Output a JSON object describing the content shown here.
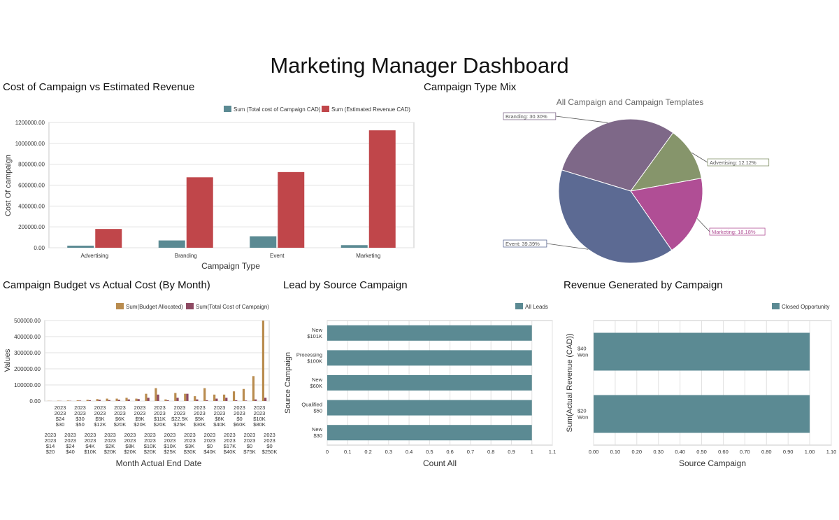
{
  "page_title": "Marketing Manager Dashboard",
  "colors": {
    "teal": "#5b8a93",
    "red": "#c0464a",
    "tan": "#b98c4f",
    "plum": "#8e4a63",
    "pie_branding": "#7e6888",
    "pie_advertising": "#86956b",
    "pie_marketing": "#b04e95",
    "pie_event": "#5c6a93"
  },
  "chart_data": [
    {
      "id": "cost_vs_revenue",
      "type": "bar",
      "title": "Cost of Campaign vs Estimated Revenue",
      "xlabel": "Campaign Type",
      "ylabel": "Cost Of campaign",
      "categories": [
        "Advertising",
        "Branding",
        "Event",
        "Marketing"
      ],
      "series": [
        {
          "name": "Sum (Total cost of Campaign CAD)",
          "values": [
            20000,
            70000,
            110000,
            25000
          ]
        },
        {
          "name": "Sum (Estimated Revenue CAD)",
          "values": [
            180000,
            675000,
            725000,
            1125000
          ]
        }
      ],
      "yticks": [
        "0.00",
        "200000.00",
        "400000.00",
        "600000.00",
        "800000.00",
        "1000000.00",
        "1200000.00"
      ],
      "ylim": [
        0,
        1200000
      ],
      "grid": true,
      "legend": "top"
    },
    {
      "id": "type_mix",
      "type": "pie",
      "title": "Campaign Type Mix",
      "subtitle": "All Campaign and Campaign Templates",
      "slices": [
        {
          "label": "Branding: 30.30%",
          "value": 30.3
        },
        {
          "label": "Advertising: 12.12%",
          "value": 12.12
        },
        {
          "label": "Marketing: 18.18%",
          "value": 18.18
        },
        {
          "label": "Event: 39.39%",
          "value": 39.39
        }
      ]
    },
    {
      "id": "budget_vs_actual",
      "type": "bar",
      "title": "Campaign Budget vs Actual Cost (By Month)",
      "xlabel": "Month Actual End Date",
      "ylabel": "Values",
      "series": [
        {
          "name": "Sum(Budget Allocated)",
          "values": [
            1000,
            2000,
            3000,
            5000,
            8000,
            12000,
            15000,
            15000,
            20000,
            15000,
            45000,
            80000,
            10000,
            50000,
            45000,
            30000,
            80000,
            40000,
            40000,
            60000,
            75000,
            155000,
            500000
          ]
        },
        {
          "name": "Sum(Total Cost of Campaign)",
          "values": [
            500,
            1000,
            1500,
            3000,
            5000,
            8000,
            6000,
            8000,
            10000,
            12000,
            20000,
            40000,
            5000,
            20000,
            45000,
            10000,
            5000,
            15000,
            20000,
            5000,
            3000,
            10000,
            20000
          ]
        }
      ],
      "xlabels_top": [
        [
          "2023",
          "2023",
          "$24",
          "$30"
        ],
        [
          "2023",
          "2023",
          "$30",
          "$50"
        ],
        [
          "2023",
          "2023",
          "$5K",
          "$12K"
        ],
        [
          "2023",
          "2023",
          "$6K",
          "$20K"
        ],
        [
          "2023",
          "2023",
          "$9K",
          "$20K"
        ],
        [
          "2023",
          "2023",
          "$11K",
          "$20K"
        ],
        [
          "2023",
          "2023",
          "$22.5K",
          "$25K"
        ],
        [
          "2023",
          "2023",
          "$5K",
          "$30K"
        ],
        [
          "2023",
          "2023",
          "$8K",
          "$40K"
        ],
        [
          "2023",
          "2023",
          "$0",
          "$60K"
        ],
        [
          "2023",
          "2023",
          "$10K",
          "$80K"
        ]
      ],
      "xlabels_bottom": [
        [
          "2023",
          "2023",
          "$14",
          "$20"
        ],
        [
          "2023",
          "2023",
          "$24",
          "$40"
        ],
        [
          "2023",
          "2023",
          "$4K",
          "$10K"
        ],
        [
          "2023",
          "2023",
          "$2K",
          "$20K"
        ],
        [
          "2023",
          "2023",
          "$8K",
          "$20K"
        ],
        [
          "2023",
          "2023",
          "$10K",
          "$20K"
        ],
        [
          "2023",
          "2023",
          "$10K",
          "$25K"
        ],
        [
          "2023",
          "2023",
          "$3K",
          "$30K"
        ],
        [
          "2023",
          "2023",
          "$0",
          "$40K"
        ],
        [
          "2023",
          "2023",
          "$17K",
          "$40K"
        ],
        [
          "2023",
          "2023",
          "$0",
          "$75K"
        ],
        [
          "2023",
          "2023",
          "$0",
          "$250K"
        ]
      ],
      "yticks": [
        "0.00",
        "100000.00",
        "200000.00",
        "300000.00",
        "400000.00",
        "500000.00"
      ],
      "ylim": [
        0,
        500000
      ],
      "grid": true,
      "legend": "top"
    },
    {
      "id": "lead_by_source",
      "type": "bar",
      "orientation": "horizontal",
      "title": "Lead by Source Campaign",
      "xlabel": "Count All",
      "ylabel": "Source Campaign",
      "categories": [
        [
          "New",
          "$101K"
        ],
        [
          "Processing",
          "$100K"
        ],
        [
          "New",
          "$60K"
        ],
        [
          "Qualified",
          "$50"
        ],
        [
          "New",
          "$30"
        ]
      ],
      "series": [
        {
          "name": "All Leads",
          "values": [
            1,
            1,
            1,
            1,
            1
          ]
        }
      ],
      "xticks": [
        "0",
        "0.1",
        "0.2",
        "0.3",
        "0.4",
        "0.5",
        "0.6",
        "0.7",
        "0.8",
        "0.9",
        "1",
        "1.1"
      ],
      "xlim": [
        0,
        1.1
      ],
      "grid": true,
      "legend": "top-right"
    },
    {
      "id": "revenue_by_campaign",
      "type": "bar",
      "orientation": "horizontal",
      "title": "Revenue Generated by Campaign",
      "xlabel": "Source Campaign",
      "ylabel": "Sum(Actual Revenue (CAD))",
      "categories": [
        [
          "$40",
          "Won"
        ],
        [
          "$20",
          "Won"
        ]
      ],
      "series": [
        {
          "name": "Closed Opportunity",
          "values": [
            1,
            1
          ]
        }
      ],
      "xticks": [
        "0.00",
        "0.10",
        "0.20",
        "0.30",
        "0.40",
        "0.50",
        "0.60",
        "0.70",
        "0.80",
        "0.90",
        "1.00",
        "1.10"
      ],
      "xlim": [
        0,
        1.1
      ],
      "grid": true,
      "legend": "top-right"
    }
  ]
}
